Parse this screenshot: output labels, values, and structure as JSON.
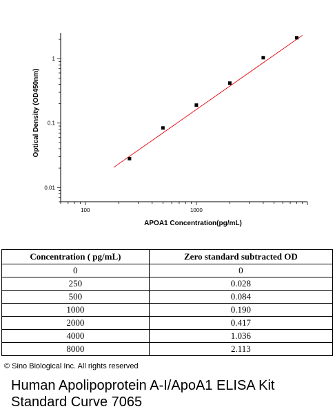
{
  "chart_data": {
    "type": "scatter",
    "title": "",
    "xlabel": "APOA1  Concentration(pg/mL)",
    "ylabel": "Optical Density (OD450nm)",
    "xscale": "log",
    "yscale": "log",
    "xlim": [
      60,
      10000
    ],
    "ylim": [
      0.006,
      2.5
    ],
    "xticks": [
      100,
      1000
    ],
    "xtick_labels": [
      "100",
      "1000"
    ],
    "yticks": [
      0.01,
      0.1,
      1
    ],
    "ytick_labels": [
      "0.01",
      "0.1",
      "1"
    ],
    "grid": false,
    "legend": "none",
    "series": [
      {
        "x": [
          250,
          500,
          1000,
          2000,
          4000,
          8000
        ],
        "y": [
          0.028,
          0.084,
          0.19,
          0.417,
          1.036,
          2.113
        ]
      }
    ],
    "fit_line": {
      "x": [
        180,
        9000
      ],
      "y": [
        0.0205,
        2.3
      ]
    },
    "marker_color": "#000000",
    "fit_color": "#e8141b"
  },
  "table": {
    "headers": [
      "Concentration ( pg/mL)",
      "Zero standard subtracted OD"
    ],
    "rows": [
      [
        "0",
        "0"
      ],
      [
        "250",
        "0.028"
      ],
      [
        "500",
        "0.084"
      ],
      [
        "1000",
        "0.190"
      ],
      [
        "2000",
        "0.417"
      ],
      [
        "4000",
        "1.036"
      ],
      [
        "8000",
        "2.113"
      ]
    ]
  },
  "copyright": "© Sino Biological Inc. All rights reserved",
  "caption": {
    "line1": "Human Apolipoprotein A-I/ApoA1 ELISA Kit",
    "line2": "Standard Curve 7065"
  }
}
